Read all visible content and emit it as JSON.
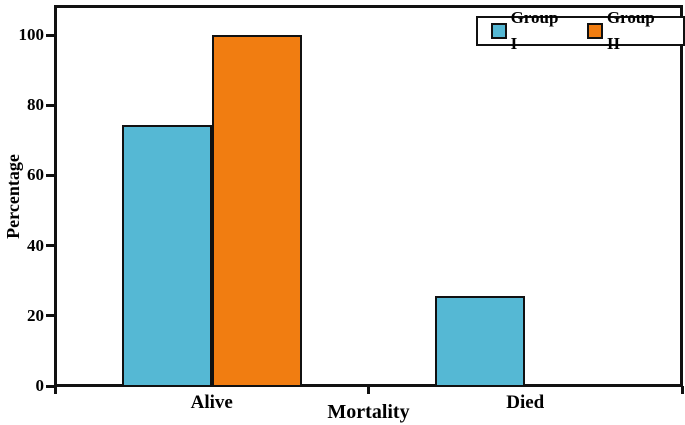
{
  "figure": {
    "background": "#ffffff",
    "axis_color": "#111111",
    "text_color": "#000000"
  },
  "chart_data": {
    "type": "bar",
    "title": "",
    "xlabel": "Mortality",
    "ylabel": "Percentage",
    "categories": [
      "Alive",
      "Died"
    ],
    "series": [
      {
        "name": "Group I",
        "color": "#55B8D4",
        "values": [
          74.3,
          25.7
        ]
      },
      {
        "name": "Group II",
        "color": "#F17D11",
        "values": [
          100,
          0
        ]
      }
    ],
    "ylim": [
      0,
      100
    ],
    "yticks": [
      0,
      20,
      40,
      60,
      80,
      100
    ],
    "grid": false,
    "legend_position": "top-right",
    "bar_border_color": "#111111"
  }
}
